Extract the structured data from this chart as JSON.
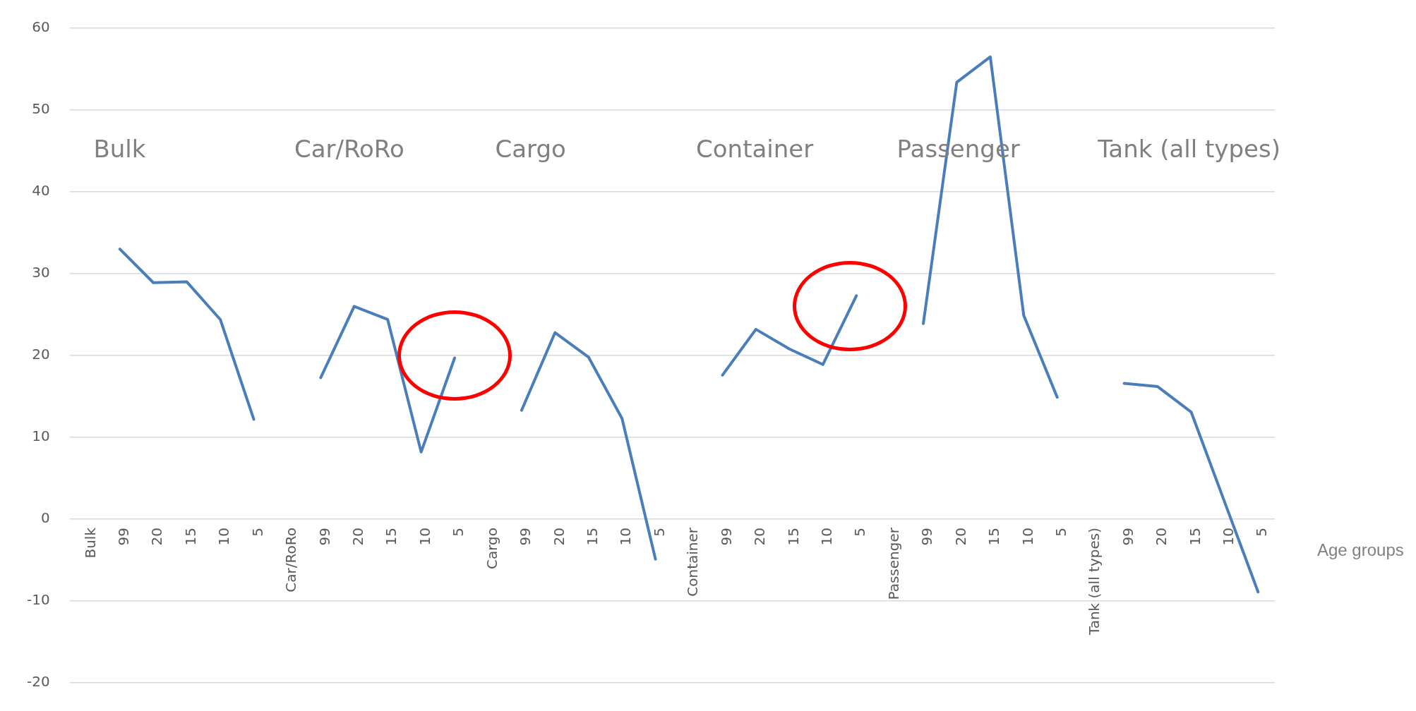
{
  "chart_data": {
    "type": "line",
    "xlabel": "Age groups",
    "categories": [
      "Bulk",
      "99",
      "20",
      "15",
      "10",
      "5",
      "Car/RoRo",
      "99",
      "20",
      "15",
      "10",
      "5",
      "Cargo",
      "99",
      "20",
      "15",
      "10",
      "5",
      "Container",
      "99",
      "20",
      "15",
      "10",
      "5",
      "Passenger",
      "99",
      "20",
      "15",
      "10",
      "5",
      "Tank (all types)",
      "99",
      "20",
      "15",
      "10",
      "5"
    ],
    "series": [
      {
        "color": "#4a7ebb",
        "values": [
          null,
          33.0,
          28.9,
          29.0,
          24.4,
          12.2,
          null,
          17.3,
          26.0,
          24.4,
          8.2,
          19.7,
          null,
          13.3,
          22.8,
          19.8,
          12.3,
          -4.9,
          null,
          17.6,
          23.2,
          20.8,
          18.9,
          27.3,
          null,
          23.9,
          53.4,
          56.5,
          24.9,
          14.9,
          null,
          16.6,
          16.2,
          13.1,
          2.1,
          -8.9
        ]
      }
    ],
    "annotations": [
      "Bulk",
      "Car/RoRo",
      "Cargo",
      "Container",
      "Passenger",
      "Tank (all types)"
    ],
    "ylim": [
      -20,
      60
    ],
    "yticks": [
      -20,
      -10,
      0,
      10,
      20,
      30,
      40,
      50,
      60
    ],
    "grid": "y",
    "legend": false,
    "marker": "none",
    "line_style": "solid"
  }
}
